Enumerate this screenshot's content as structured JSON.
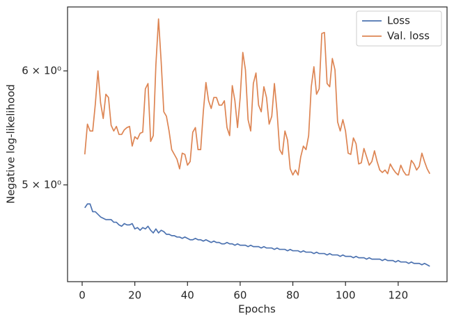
{
  "chart_data": {
    "type": "line",
    "xlabel": "Epochs",
    "ylabel": "Negative log-likelihood",
    "x": [
      1,
      2,
      3,
      4,
      5,
      6,
      7,
      8,
      9,
      10,
      11,
      12,
      13,
      14,
      15,
      16,
      17,
      18,
      19,
      20,
      21,
      22,
      23,
      24,
      25,
      26,
      27,
      28,
      29,
      30,
      31,
      32,
      33,
      34,
      35,
      36,
      37,
      38,
      39,
      40,
      41,
      42,
      43,
      44,
      45,
      46,
      47,
      48,
      49,
      50,
      51,
      52,
      53,
      54,
      55,
      56,
      57,
      58,
      59,
      60,
      61,
      62,
      63,
      64,
      65,
      66,
      67,
      68,
      69,
      70,
      71,
      72,
      73,
      74,
      75,
      76,
      77,
      78,
      79,
      80,
      81,
      82,
      83,
      84,
      85,
      86,
      87,
      88,
      89,
      90,
      91,
      92,
      93,
      94,
      95,
      96,
      97,
      98,
      99,
      100,
      101,
      102,
      103,
      104,
      105,
      106,
      107,
      108,
      109,
      110,
      111,
      112,
      113,
      114,
      115,
      116,
      117,
      118,
      119,
      120,
      121,
      122,
      123,
      124,
      125,
      126,
      127,
      128,
      129,
      130,
      131,
      132
    ],
    "series": [
      {
        "name": "Loss",
        "color": "#4c72b0",
        "values": [
          4.82,
          4.85,
          4.85,
          4.79,
          4.79,
          4.77,
          4.75,
          4.74,
          4.73,
          4.73,
          4.73,
          4.71,
          4.71,
          4.69,
          4.68,
          4.7,
          4.69,
          4.69,
          4.7,
          4.66,
          4.67,
          4.65,
          4.67,
          4.66,
          4.68,
          4.65,
          4.63,
          4.66,
          4.63,
          4.65,
          4.64,
          4.62,
          4.62,
          4.61,
          4.61,
          4.6,
          4.6,
          4.59,
          4.6,
          4.59,
          4.58,
          4.58,
          4.59,
          4.58,
          4.58,
          4.57,
          4.58,
          4.57,
          4.56,
          4.57,
          4.56,
          4.56,
          4.55,
          4.55,
          4.56,
          4.55,
          4.55,
          4.54,
          4.55,
          4.54,
          4.54,
          4.54,
          4.53,
          4.54,
          4.53,
          4.53,
          4.53,
          4.52,
          4.53,
          4.52,
          4.52,
          4.52,
          4.51,
          4.52,
          4.51,
          4.51,
          4.51,
          4.5,
          4.51,
          4.5,
          4.5,
          4.5,
          4.49,
          4.5,
          4.49,
          4.49,
          4.49,
          4.48,
          4.49,
          4.48,
          4.48,
          4.48,
          4.47,
          4.48,
          4.47,
          4.47,
          4.47,
          4.46,
          4.47,
          4.46,
          4.46,
          4.46,
          4.45,
          4.46,
          4.45,
          4.45,
          4.45,
          4.44,
          4.45,
          4.44,
          4.44,
          4.44,
          4.44,
          4.43,
          4.44,
          4.43,
          4.43,
          4.43,
          4.42,
          4.43,
          4.42,
          4.42,
          4.42,
          4.41,
          4.42,
          4.41,
          4.41,
          4.41,
          4.4,
          4.41,
          4.4,
          4.39
        ]
      },
      {
        "name": "Val. loss",
        "color": "#dd8452",
        "values": [
          5.25,
          5.51,
          5.45,
          5.45,
          5.69,
          6.0,
          5.7,
          5.56,
          5.78,
          5.75,
          5.5,
          5.45,
          5.49,
          5.42,
          5.42,
          5.46,
          5.48,
          5.49,
          5.32,
          5.4,
          5.38,
          5.43,
          5.44,
          5.83,
          5.88,
          5.36,
          5.41,
          6.06,
          6.52,
          6.09,
          5.62,
          5.58,
          5.45,
          5.29,
          5.25,
          5.21,
          5.13,
          5.26,
          5.25,
          5.16,
          5.19,
          5.44,
          5.48,
          5.29,
          5.29,
          5.62,
          5.89,
          5.72,
          5.65,
          5.75,
          5.75,
          5.68,
          5.68,
          5.72,
          5.48,
          5.41,
          5.86,
          5.72,
          5.48,
          5.75,
          6.18,
          6.01,
          5.55,
          5.45,
          5.88,
          5.98,
          5.68,
          5.62,
          5.85,
          5.75,
          5.51,
          5.58,
          5.88,
          5.62,
          5.29,
          5.25,
          5.45,
          5.37,
          5.13,
          5.08,
          5.12,
          5.08,
          5.23,
          5.32,
          5.29,
          5.41,
          5.85,
          6.04,
          5.78,
          5.83,
          6.37,
          6.38,
          5.88,
          5.85,
          6.12,
          6.01,
          5.53,
          5.45,
          5.55,
          5.45,
          5.26,
          5.25,
          5.39,
          5.34,
          5.17,
          5.18,
          5.3,
          5.23,
          5.16,
          5.19,
          5.28,
          5.19,
          5.12,
          5.1,
          5.12,
          5.09,
          5.17,
          5.13,
          5.1,
          5.08,
          5.16,
          5.11,
          5.08,
          5.08,
          5.2,
          5.17,
          5.12,
          5.15,
          5.26,
          5.19,
          5.13,
          5.09
        ]
      }
    ],
    "xlim": [
      -5.55,
      138.55
    ],
    "xticks": [
      0,
      20,
      40,
      60,
      80,
      100,
      120
    ],
    "ylim": [
      4.283,
      6.646
    ],
    "yscale": "log",
    "yticks": [
      {
        "value": 5,
        "label": "5 × 10⁰"
      },
      {
        "value": 6,
        "label": "6 × 10⁰"
      }
    ],
    "legend": "upper right"
  }
}
